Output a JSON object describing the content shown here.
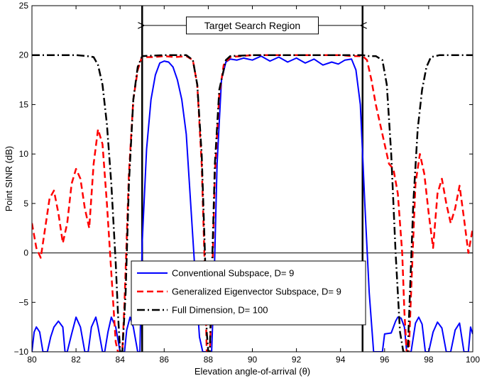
{
  "chart_data": {
    "type": "line",
    "title": "",
    "xlabel": "Elevation angle-of-arrival (θ)",
    "ylabel": "Point SINR (dB)",
    "xlim": [
      80,
      100
    ],
    "ylim": [
      -10,
      25
    ],
    "xticks": [
      80,
      82,
      84,
      86,
      88,
      90,
      92,
      94,
      96,
      98,
      100
    ],
    "yticks": [
      -10,
      -5,
      0,
      5,
      10,
      15,
      20,
      25
    ],
    "grid": false,
    "legend_position": "bottom-center",
    "annotation": {
      "text": "Target Search Region",
      "x_start": 85,
      "x_end": 95,
      "y": 23
    },
    "reference_lines": {
      "horizontal": [
        0
      ],
      "vertical": [
        85,
        95
      ]
    },
    "series": [
      {
        "name": "Conventional Subspace, D= 9",
        "color": "#0000ff",
        "style": "solid",
        "x": [
          80,
          80.1,
          80.2,
          80.35,
          80.5,
          80.7,
          80.85,
          81,
          81.2,
          81.4,
          81.5,
          81.6,
          81.8,
          82,
          82.2,
          82.4,
          82.55,
          82.7,
          82.9,
          83,
          83.2,
          83.3,
          83.45,
          83.6,
          83.8,
          84,
          84.2,
          84.3,
          84.45,
          84.6,
          84.8,
          84.9,
          85,
          85.2,
          85.4,
          85.6,
          85.8,
          86,
          86.2,
          86.4,
          86.6,
          86.8,
          87,
          87.2,
          87.4,
          87.6,
          87.75,
          87.85,
          87.92,
          88,
          88.08,
          88.15,
          88.25,
          88.4,
          88.6,
          88.8,
          89,
          89.3,
          89.6,
          90,
          90.4,
          90.8,
          91.2,
          91.6,
          92,
          92.4,
          92.8,
          93.2,
          93.6,
          93.9,
          94.2,
          94.5,
          94.7,
          94.9,
          95,
          95.1,
          95.3,
          95.5,
          95.6,
          95.7,
          95.8,
          95.9,
          96,
          96.3,
          96.5,
          96.6,
          96.75,
          96.9,
          97,
          97.2,
          97.4,
          97.55,
          97.7,
          97.85,
          98,
          98.2,
          98.4,
          98.6,
          98.8,
          99,
          99.2,
          99.4,
          99.6,
          99.8,
          99.9,
          100
        ],
        "y": [
          -10,
          -8,
          -7.5,
          -8,
          -10,
          -10,
          -8.5,
          -7.5,
          -6.9,
          -7.5,
          -10,
          -10,
          -8.2,
          -6.5,
          -7.5,
          -10,
          -10,
          -7.5,
          -6.5,
          -7.5,
          -10,
          -10,
          -8,
          -6.5,
          -7.5,
          -10,
          -10,
          -7.8,
          -6.5,
          -7.5,
          -10,
          -10,
          1,
          10.5,
          15.5,
          18,
          19.2,
          19.4,
          19.3,
          18.8,
          17.5,
          15.5,
          12,
          5,
          -2,
          -8.5,
          -10,
          -10,
          -10,
          -10,
          -10,
          -10,
          -4,
          9,
          17.5,
          19.3,
          19.6,
          19.5,
          19.7,
          19.5,
          19.9,
          19.4,
          19.8,
          19.3,
          19.7,
          19.2,
          19.6,
          19,
          19.3,
          19.1,
          19.5,
          19.6,
          18.5,
          15,
          10,
          5,
          -4,
          -10,
          -10,
          -10,
          -10,
          -10,
          -8.2,
          -8.1,
          -6.9,
          -6.5,
          -6.6,
          -7.5,
          -10,
          -10,
          -7.1,
          -6.5,
          -7.2,
          -10,
          -10,
          -8,
          -7,
          -7.6,
          -10,
          -10,
          -7.8,
          -7.1,
          -10,
          -10,
          -7.5,
          -8.2
        ],
        "linewidth": 2
      },
      {
        "name": "Generalized Eigenvector Subspace, D= 9",
        "color": "#ff0000",
        "style": "dashed",
        "x": [
          80,
          80.2,
          80.4,
          80.6,
          80.8,
          81,
          81.2,
          81.4,
          81.6,
          81.8,
          82,
          82.2,
          82.4,
          82.6,
          82.8,
          83,
          83.2,
          83.4,
          83.6,
          83.8,
          83.9,
          84,
          84.1,
          84.2,
          84.4,
          84.6,
          84.8,
          85,
          85.2,
          85.5,
          86,
          86.5,
          87,
          87.3,
          87.5,
          87.7,
          87.85,
          87.93,
          88,
          88.07,
          88.15,
          88.3,
          88.5,
          88.7,
          89,
          89.5,
          90,
          91,
          92,
          93,
          94,
          94.5,
          95,
          95.2,
          95.4,
          95.6,
          95.8,
          96,
          96.2,
          96.4,
          96.6,
          96.8,
          96.9,
          97,
          97.1,
          97.2,
          97.4,
          97.6,
          97.8,
          98,
          98.2,
          98.4,
          98.6,
          98.8,
          99,
          99.2,
          99.4,
          99.6,
          99.8,
          100
        ],
        "y": [
          3,
          0.5,
          -0.5,
          2.5,
          5.5,
          6.3,
          4,
          1,
          3,
          7,
          8.5,
          7.5,
          4.5,
          2.5,
          9,
          12.5,
          11,
          5,
          -2,
          -9,
          -10,
          -10,
          -10,
          -5,
          8,
          15.5,
          18.5,
          19.9,
          19.8,
          19.8,
          19.9,
          19.8,
          19.9,
          19.5,
          17,
          9,
          -2,
          -10,
          -10,
          -10,
          -5,
          8,
          16,
          19,
          19.8,
          19.9,
          20,
          20,
          20,
          20,
          20,
          19.9,
          19.9,
          19.5,
          17.5,
          15,
          13,
          11,
          9,
          8.5,
          6,
          0,
          -6,
          -10,
          -10,
          -4,
          7,
          10,
          8,
          4,
          0.5,
          6,
          7.5,
          5,
          3,
          4.5,
          6.8,
          3.5,
          0,
          2.5
        ],
        "linewidth": 2.5
      },
      {
        "name": "Full Dimension, D= 100",
        "color": "#000000",
        "style": "dashdot",
        "x": [
          80,
          81,
          82,
          82.5,
          82.8,
          83,
          83.2,
          83.4,
          83.6,
          83.8,
          83.9,
          84,
          84.1,
          84.25,
          84.4,
          84.6,
          84.8,
          85,
          86,
          87,
          87.3,
          87.5,
          87.7,
          87.85,
          87.93,
          88,
          88.07,
          88.15,
          88.3,
          88.5,
          88.8,
          89,
          90,
          92,
          94,
          95,
          95.3,
          95.6,
          95.9,
          96.1,
          96.3,
          96.5,
          96.7,
          96.85,
          96.95,
          97,
          97.05,
          97.15,
          97.3,
          97.5,
          97.7,
          97.9,
          98.1,
          98.3,
          98.5,
          99,
          100
        ],
        "y": [
          20,
          20,
          20,
          19.9,
          19.8,
          19,
          17,
          13,
          7,
          -1,
          -6,
          -10,
          -10,
          -4,
          7,
          15.5,
          18.8,
          19.9,
          20,
          20,
          19.5,
          17,
          10,
          0,
          -8,
          -10,
          -10,
          -3,
          9,
          16.5,
          19.5,
          19.9,
          20,
          20,
          20,
          20,
          19.9,
          19.9,
          19.5,
          17,
          10,
          0,
          -8,
          -10,
          -10,
          -10,
          -10,
          -4,
          5,
          12.5,
          16.5,
          18.8,
          19.8,
          19.9,
          20,
          20,
          20
        ],
        "linewidth": 2.5
      }
    ]
  }
}
